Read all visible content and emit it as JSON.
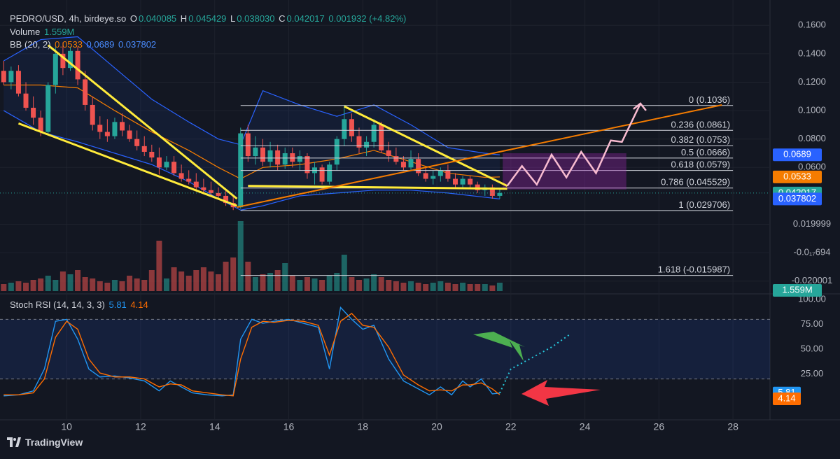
{
  "legend": {
    "symbol": "PEDRO/USD, 4h, birdeye.so",
    "o_label": "O",
    "o_value": "0.040085",
    "h_label": "H",
    "h_value": "0.045429",
    "l_label": "L",
    "l_value": "0.038030",
    "c_label": "C",
    "c_value": "0.042017",
    "change": "0.001932 (+4.82%)",
    "volume_label": "Volume",
    "volume_value": "1.559M",
    "bb_label": "BB (20, 2)",
    "bb_basis": "0.0533",
    "bb_upper": "0.0689",
    "bb_lower": "0.037802",
    "stoch_label": "Stoch RSI (14, 14, 3, 3)",
    "stoch_k": "5.81",
    "stoch_d": "4.14"
  },
  "brand": "TradingView",
  "colors": {
    "background": "#131722",
    "up": "#26a69a",
    "down": "#ef5350",
    "bb_basis": "#f57c00",
    "bb_band": "#2962ff",
    "trendline": "#ffeb3b",
    "fib": "#d1d4dc",
    "stoch_k": "#2196f3",
    "stoch_d": "#ff6d00",
    "range_box": "#9c27b0",
    "projection": "#f8bbd0",
    "arrow_green": "#4caf50",
    "arrow_red": "#f23645"
  },
  "chart_data": [
    {
      "type": "candlestick",
      "title": "PEDRO/USD, 4h, birdeye.so",
      "x_range": [
        8.2,
        29
      ],
      "y_range": [
        -0.028,
        0.168
      ],
      "x_ticks": [
        "10",
        "12",
        "14",
        "16",
        "18",
        "20",
        "22",
        "24",
        "26",
        "28"
      ],
      "y_ticks": [
        "0.1600",
        "0.1400",
        "0.1200",
        "0.1000",
        "0.0800",
        "0.0600",
        "0.019999",
        "-0.0₁₇694",
        "-0.020001"
      ],
      "price_tags": [
        {
          "label": "0.0689",
          "value": 0.0689,
          "color": "#2962ff"
        },
        {
          "label": "0.0533",
          "value": 0.0533,
          "color": "#f57c00"
        },
        {
          "label": "0.042017",
          "value": 0.042017,
          "color": "#26a69a"
        },
        {
          "label": "0.037802",
          "value": 0.037802,
          "color": "#2962ff"
        },
        {
          "label": "1.559M",
          "value": -0.0265,
          "color": "#26a69a"
        }
      ],
      "candles_x": [
        8.3,
        8.5,
        8.7,
        8.9,
        9.1,
        9.3,
        9.5,
        9.7,
        9.9,
        10.1,
        10.3,
        10.5,
        10.7,
        10.9,
        11.1,
        11.3,
        11.5,
        11.7,
        11.9,
        12.1,
        12.3,
        12.5,
        12.7,
        12.9,
        13.1,
        13.3,
        13.5,
        13.7,
        13.9,
        14.1,
        14.3,
        14.5,
        14.7,
        14.9,
        15.1,
        15.3,
        15.5,
        15.7,
        15.9,
        16.1,
        16.3,
        16.5,
        16.7,
        16.9,
        17.1,
        17.3,
        17.5,
        17.7,
        17.9,
        18.1,
        18.3,
        18.5,
        18.7,
        18.9,
        19.1,
        19.3,
        19.5,
        19.7,
        19.9,
        20.1,
        20.3,
        20.5,
        20.7,
        20.9,
        21.1,
        21.3,
        21.5,
        21.7
      ],
      "candles_ohlc": [
        [
          0.128,
          0.135,
          0.118,
          0.12
        ],
        [
          0.12,
          0.131,
          0.115,
          0.128
        ],
        [
          0.128,
          0.132,
          0.11,
          0.112
        ],
        [
          0.112,
          0.12,
          0.1,
          0.102
        ],
        [
          0.102,
          0.11,
          0.09,
          0.095
        ],
        [
          0.095,
          0.1,
          0.082,
          0.085
        ],
        [
          0.085,
          0.12,
          0.083,
          0.118
        ],
        [
          0.118,
          0.145,
          0.112,
          0.14
        ],
        [
          0.14,
          0.148,
          0.125,
          0.13
        ],
        [
          0.13,
          0.145,
          0.128,
          0.142
        ],
        [
          0.142,
          0.145,
          0.118,
          0.122
        ],
        [
          0.122,
          0.128,
          0.1,
          0.104
        ],
        [
          0.104,
          0.11,
          0.086,
          0.09
        ],
        [
          0.09,
          0.096,
          0.08,
          0.085
        ],
        [
          0.085,
          0.094,
          0.078,
          0.082
        ],
        [
          0.082,
          0.095,
          0.08,
          0.092
        ],
        [
          0.092,
          0.098,
          0.082,
          0.086
        ],
        [
          0.086,
          0.09,
          0.078,
          0.08
        ],
        [
          0.08,
          0.086,
          0.072,
          0.075
        ],
        [
          0.075,
          0.082,
          0.068,
          0.071
        ],
        [
          0.071,
          0.076,
          0.064,
          0.067
        ],
        [
          0.067,
          0.074,
          0.055,
          0.06
        ],
        [
          0.06,
          0.068,
          0.058,
          0.064
        ],
        [
          0.064,
          0.068,
          0.054,
          0.056
        ],
        [
          0.056,
          0.062,
          0.05,
          0.052
        ],
        [
          0.052,
          0.058,
          0.048,
          0.05
        ],
        [
          0.05,
          0.056,
          0.044,
          0.046
        ],
        [
          0.046,
          0.052,
          0.042,
          0.044
        ],
        [
          0.044,
          0.05,
          0.04,
          0.042
        ],
        [
          0.042,
          0.046,
          0.038,
          0.04
        ],
        [
          0.04,
          0.044,
          0.033,
          0.035
        ],
        [
          0.035,
          0.04,
          0.03,
          0.032
        ],
        [
          0.032,
          0.088,
          0.031,
          0.084
        ],
        [
          0.084,
          0.09,
          0.064,
          0.068
        ],
        [
          0.068,
          0.082,
          0.062,
          0.074
        ],
        [
          0.074,
          0.08,
          0.061,
          0.064
        ],
        [
          0.064,
          0.078,
          0.06,
          0.072
        ],
        [
          0.072,
          0.076,
          0.058,
          0.062
        ],
        [
          0.062,
          0.074,
          0.059,
          0.07
        ],
        [
          0.07,
          0.074,
          0.06,
          0.064
        ],
        [
          0.064,
          0.072,
          0.058,
          0.068
        ],
        [
          0.068,
          0.07,
          0.052,
          0.056
        ],
        [
          0.056,
          0.064,
          0.048,
          0.06
        ],
        [
          0.06,
          0.062,
          0.048,
          0.05
        ],
        [
          0.05,
          0.064,
          0.048,
          0.062
        ],
        [
          0.062,
          0.082,
          0.058,
          0.08
        ],
        [
          0.08,
          0.104,
          0.075,
          0.094
        ],
        [
          0.094,
          0.098,
          0.078,
          0.082
        ],
        [
          0.082,
          0.088,
          0.07,
          0.074
        ],
        [
          0.074,
          0.082,
          0.068,
          0.078
        ],
        [
          0.078,
          0.094,
          0.074,
          0.09
        ],
        [
          0.09,
          0.092,
          0.07,
          0.072
        ],
        [
          0.072,
          0.078,
          0.064,
          0.068
        ],
        [
          0.068,
          0.074,
          0.062,
          0.064
        ],
        [
          0.064,
          0.068,
          0.058,
          0.06
        ],
        [
          0.06,
          0.072,
          0.058,
          0.066
        ],
        [
          0.066,
          0.07,
          0.054,
          0.056
        ],
        [
          0.056,
          0.06,
          0.05,
          0.052
        ],
        [
          0.052,
          0.058,
          0.048,
          0.054
        ],
        [
          0.054,
          0.06,
          0.05,
          0.058
        ],
        [
          0.058,
          0.062,
          0.05,
          0.052
        ],
        [
          0.052,
          0.056,
          0.046,
          0.048
        ],
        [
          0.048,
          0.054,
          0.046,
          0.052
        ],
        [
          0.052,
          0.054,
          0.046,
          0.048
        ],
        [
          0.048,
          0.05,
          0.042,
          0.044
        ],
        [
          0.044,
          0.048,
          0.04,
          0.046
        ],
        [
          0.046,
          0.048,
          0.038,
          0.04
        ],
        [
          0.04,
          0.045,
          0.038,
          0.042
        ]
      ],
      "volume_scale": "relative 0-1",
      "volume": [
        0.1,
        0.12,
        0.14,
        0.12,
        0.16,
        0.18,
        0.22,
        0.16,
        0.28,
        0.24,
        0.3,
        0.2,
        0.18,
        0.14,
        0.12,
        0.16,
        0.14,
        0.22,
        0.18,
        0.16,
        0.3,
        0.72,
        0.18,
        0.34,
        0.28,
        0.22,
        0.3,
        0.34,
        0.28,
        0.24,
        0.42,
        0.48,
        1.0,
        0.42,
        0.2,
        0.24,
        0.26,
        0.3,
        0.4,
        0.22,
        0.16,
        0.2,
        0.18,
        0.16,
        0.22,
        0.26,
        0.52,
        0.2,
        0.16,
        0.18,
        0.24,
        0.2,
        0.16,
        0.14,
        0.12,
        0.14,
        0.12,
        0.1,
        0.12,
        0.14,
        0.12,
        0.1,
        0.12,
        0.1,
        0.1,
        0.1,
        0.08,
        0.12
      ],
      "bollinger": {
        "basis": [
          [
            8.3,
            0.118
          ],
          [
            9.3,
            0.118
          ],
          [
            10.3,
            0.116
          ],
          [
            11.3,
            0.1
          ],
          [
            12.3,
            0.085
          ],
          [
            13.3,
            0.072
          ],
          [
            14.1,
            0.06
          ],
          [
            14.7,
            0.052
          ],
          [
            15.3,
            0.06
          ],
          [
            16.3,
            0.062
          ],
          [
            17.3,
            0.066
          ],
          [
            18.3,
            0.072
          ],
          [
            19.3,
            0.064
          ],
          [
            20.3,
            0.056
          ],
          [
            21.3,
            0.053
          ],
          [
            21.7,
            0.0533
          ]
        ],
        "upper": [
          [
            8.3,
            0.135
          ],
          [
            9.3,
            0.15
          ],
          [
            10.3,
            0.152
          ],
          [
            11.3,
            0.13
          ],
          [
            12.3,
            0.108
          ],
          [
            13.3,
            0.092
          ],
          [
            14.1,
            0.08
          ],
          [
            14.7,
            0.076
          ],
          [
            15.3,
            0.114
          ],
          [
            16.3,
            0.104
          ],
          [
            17.3,
            0.096
          ],
          [
            18.3,
            0.104
          ],
          [
            19.3,
            0.09
          ],
          [
            20.3,
            0.074
          ],
          [
            21.3,
            0.07
          ],
          [
            21.7,
            0.0689
          ]
        ],
        "lower": [
          [
            8.3,
            0.1
          ],
          [
            9.3,
            0.085
          ],
          [
            10.3,
            0.078
          ],
          [
            11.3,
            0.07
          ],
          [
            12.3,
            0.062
          ],
          [
            13.3,
            0.05
          ],
          [
            14.1,
            0.038
          ],
          [
            14.7,
            0.03
          ],
          [
            15.3,
            0.033
          ],
          [
            16.3,
            0.04
          ],
          [
            17.3,
            0.042
          ],
          [
            18.3,
            0.044
          ],
          [
            19.3,
            0.044
          ],
          [
            20.3,
            0.042
          ],
          [
            21.3,
            0.039
          ],
          [
            21.7,
            0.0378
          ]
        ]
      },
      "fibonacci": [
        {
          "label": "0 (0.1036)",
          "value": 0.1036
        },
        {
          "label": "0.236 (0.0861)",
          "value": 0.0861
        },
        {
          "label": "0.382 (0.0753)",
          "value": 0.0753
        },
        {
          "label": "0.5 (0.0666)",
          "value": 0.0666
        },
        {
          "label": "0.618 (0.0579)",
          "value": 0.0579
        },
        {
          "label": "0.786 (0.045529)",
          "value": 0.045529
        },
        {
          "label": "1 (0.029706)",
          "value": 0.029706
        },
        {
          "label": "1.618 (-0.015987)",
          "value": -0.015987
        }
      ],
      "fib_x_range": [
        14.7,
        28
      ],
      "trendlines_yellow": [
        [
          [
            9.5,
            0.146
          ],
          [
            14.6,
            0.038
          ]
        ],
        [
          [
            8.7,
            0.091
          ],
          [
            14.6,
            0.033
          ]
        ],
        [
          [
            17.5,
            0.103
          ],
          [
            21.9,
            0.047
          ]
        ],
        [
          [
            14.9,
            0.047
          ],
          [
            21.9,
            0.045
          ]
        ]
      ],
      "trendline_orange": [
        [
          14.6,
          0.032
        ],
        [
          27.7,
          0.104
        ]
      ],
      "range_box": {
        "x": [
          21.8,
          25.1
        ],
        "y": [
          0.045,
          0.0695
        ]
      },
      "projection": [
        [
          21.9,
          0.047
        ],
        [
          22.3,
          0.061
        ],
        [
          22.7,
          0.048
        ],
        [
          23.1,
          0.069
        ],
        [
          23.5,
          0.053
        ],
        [
          23.9,
          0.071
        ],
        [
          24.3,
          0.056
        ],
        [
          24.7,
          0.079
        ],
        [
          25.0,
          0.078
        ],
        [
          25.5,
          0.105
        ]
      ]
    },
    {
      "type": "line",
      "title": "Stoch RSI (14, 14, 3, 3)",
      "x_range": [
        8.2,
        29
      ],
      "y_range": [
        0,
        100
      ],
      "y_ticks": [
        "100.00",
        "75.00",
        "50.00",
        "25.00"
      ],
      "bands": [
        20,
        80
      ],
      "series": [
        {
          "name": "K",
          "color": "#2196f3",
          "x": [
            8.3,
            8.7,
            9.1,
            9.4,
            9.7,
            10.0,
            10.3,
            10.6,
            10.9,
            11.3,
            11.7,
            12.1,
            12.5,
            12.8,
            13.1,
            13.4,
            13.8,
            14.2,
            14.5,
            14.7,
            15.0,
            15.3,
            15.6,
            16.0,
            16.4,
            16.8,
            17.1,
            17.4,
            17.7,
            18.0,
            18.3,
            18.7,
            19.1,
            19.5,
            19.8,
            20.1,
            20.4,
            20.7,
            20.9,
            21.2,
            21.5,
            21.7
          ],
          "values": [
            3,
            4,
            8,
            30,
            78,
            80,
            60,
            30,
            22,
            23,
            21,
            18,
            8,
            18,
            12,
            6,
            4,
            3,
            4,
            60,
            80,
            76,
            78,
            80,
            76,
            72,
            30,
            92,
            80,
            70,
            74,
            40,
            18,
            10,
            4,
            12,
            4,
            18,
            12,
            20,
            5,
            5.81
          ]
        },
        {
          "name": "D",
          "color": "#ff6d00",
          "x": [
            8.3,
            8.7,
            9.1,
            9.4,
            9.7,
            10.0,
            10.3,
            10.6,
            10.9,
            11.3,
            11.7,
            12.1,
            12.5,
            12.8,
            13.1,
            13.4,
            13.8,
            14.2,
            14.5,
            14.7,
            15.0,
            15.3,
            15.6,
            16.0,
            16.4,
            16.8,
            17.1,
            17.4,
            17.7,
            18.0,
            18.3,
            18.7,
            19.1,
            19.5,
            19.8,
            20.1,
            20.4,
            20.7,
            20.9,
            21.2,
            21.5,
            21.7
          ],
          "values": [
            4,
            4,
            6,
            20,
            62,
            78,
            70,
            40,
            26,
            22,
            22,
            20,
            12,
            15,
            14,
            8,
            6,
            4,
            3,
            40,
            72,
            78,
            77,
            79,
            78,
            74,
            44,
            78,
            86,
            74,
            72,
            52,
            24,
            14,
            8,
            9,
            8,
            14,
            14,
            16,
            10,
            4.14
          ]
        }
      ],
      "projection": [
        [
          21.7,
          5.81
        ],
        [
          22.0,
          30
        ],
        [
          22.5,
          40
        ],
        [
          23.1,
          52
        ],
        [
          23.6,
          65
        ]
      ],
      "value_tags": [
        {
          "label": "5.81",
          "value": 5.81,
          "color": "#2196f3"
        },
        {
          "label": "4.14",
          "value": 0,
          "color": "#ff6d00"
        }
      ]
    }
  ]
}
